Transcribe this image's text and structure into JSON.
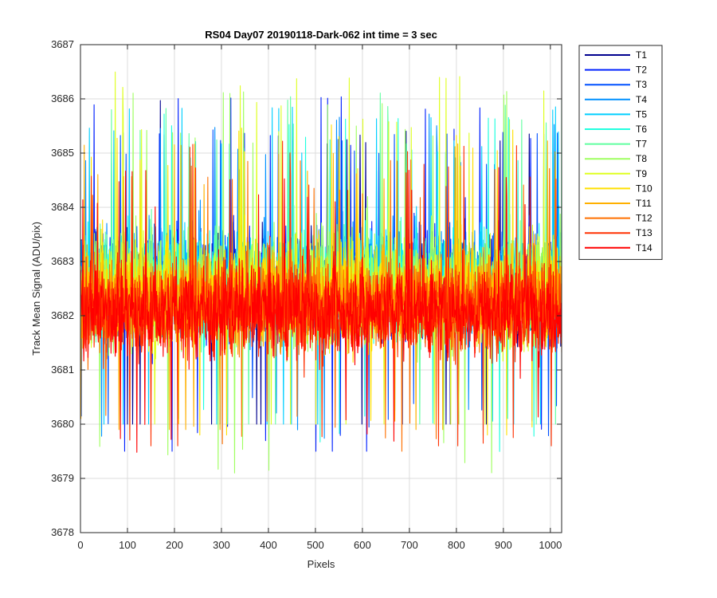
{
  "chart_data": {
    "type": "line",
    "title": "RS04 Day07 20190118-Dark-062 int time = 3 sec",
    "xlabel": "Pixels",
    "ylabel": "Track Mean Signal (ADU/pix)",
    "xlim": [
      0,
      1024
    ],
    "ylim": [
      3678,
      3687
    ],
    "x_ticks": [
      0,
      100,
      200,
      300,
      400,
      500,
      600,
      700,
      800,
      900,
      1000
    ],
    "y_ticks": [
      3678,
      3679,
      3680,
      3681,
      3682,
      3683,
      3684,
      3685,
      3686,
      3687
    ],
    "grid": true,
    "legend_position": "outside-top-right",
    "series_note": "Each trace T1–T14 spans pixels 1–1024 with dense per-pixel noise around ~3682.3 ADU/pix.",
    "series": [
      {
        "name": "T1",
        "color": "#00008F",
        "mean": 3682.6,
        "min": 3680.0,
        "max": 3686.0
      },
      {
        "name": "T2",
        "color": "#0020FF",
        "mean": 3682.6,
        "min": 3679.5,
        "max": 3686.2
      },
      {
        "name": "T3",
        "color": "#0050FF",
        "mean": 3682.6,
        "min": 3679.5,
        "max": 3685.5
      },
      {
        "name": "T4",
        "color": "#0090FF",
        "mean": 3682.6,
        "min": 3679.3,
        "max": 3685.8
      },
      {
        "name": "T5",
        "color": "#00CFFF",
        "mean": 3682.6,
        "min": 3680.0,
        "max": 3686.0
      },
      {
        "name": "T6",
        "color": "#20FFDF",
        "mean": 3682.6,
        "min": 3679.3,
        "max": 3685.8
      },
      {
        "name": "T7",
        "color": "#60FFA0",
        "mean": 3682.5,
        "min": 3680.0,
        "max": 3686.2
      },
      {
        "name": "T8",
        "color": "#9FFF60",
        "mean": 3682.5,
        "min": 3679.1,
        "max": 3686.3
      },
      {
        "name": "T9",
        "color": "#DFFF20",
        "mean": 3682.4,
        "min": 3680.0,
        "max": 3686.6
      },
      {
        "name": "T10",
        "color": "#FFE000",
        "mean": 3682.4,
        "min": 3679.8,
        "max": 3685.6
      },
      {
        "name": "T11",
        "color": "#FFB000",
        "mean": 3682.3,
        "min": 3679.9,
        "max": 3685.3
      },
      {
        "name": "T12",
        "color": "#FF7000",
        "mean": 3682.2,
        "min": 3679.5,
        "max": 3685.0
      },
      {
        "name": "T13",
        "color": "#FF3000",
        "mean": 3682.1,
        "min": 3679.6,
        "max": 3685.3
      },
      {
        "name": "T14",
        "color": "#FF0000",
        "mean": 3682.1,
        "min": 3679.0,
        "max": 3684.8
      }
    ]
  }
}
